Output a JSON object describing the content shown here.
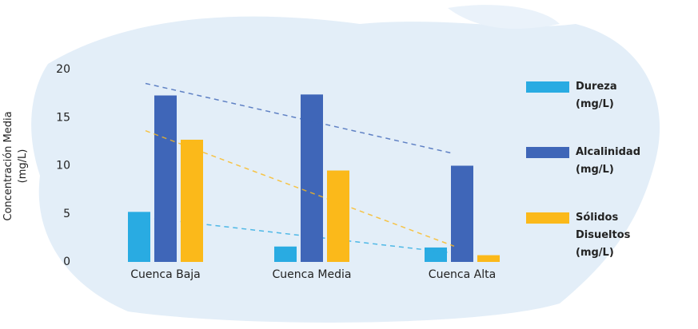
{
  "chart_data": {
    "type": "bar",
    "y_label": "Concentración Media (mg/L)",
    "categories": [
      "Cuenca Baja",
      "Cuenca Media",
      "Cuenca Alta"
    ],
    "series": [
      {
        "name": "Dureza (mg/L)",
        "color": "#29abe2",
        "values": [
          5.2,
          1.6,
          1.5
        ]
      },
      {
        "name": "Alcalinidad (mg/L)",
        "color": "#3f66b8",
        "values": [
          17.3,
          17.4,
          10
        ]
      },
      {
        "name": "Sólidos Disueltos (mg/L)",
        "color": "#fbb91a",
        "values": [
          12.7,
          9.5,
          0.7
        ]
      }
    ],
    "ylim": [
      0,
      20
    ],
    "yticks": [
      0,
      5,
      10,
      15,
      20
    ],
    "grid": false,
    "trendlines": true,
    "legend": "right"
  }
}
